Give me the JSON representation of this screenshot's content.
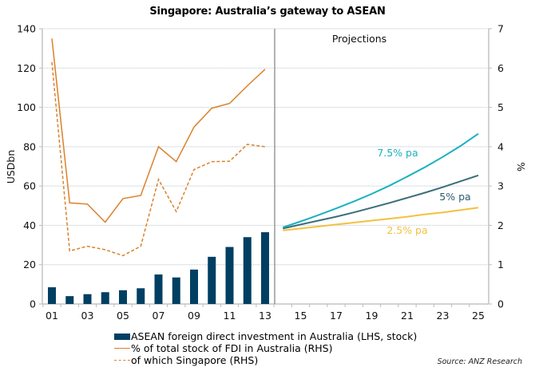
{
  "chart_data": {
    "type": "bar",
    "title": "Singapore: Australia’s gateway to ASEAN",
    "xlabel": "",
    "ylabel": "USDbn",
    "y2label": "%",
    "ylim": [
      0,
      140
    ],
    "y2lim": [
      0,
      7
    ],
    "yticks": [
      "0",
      "20",
      "40",
      "60",
      "80",
      "100",
      "120",
      "140"
    ],
    "y2ticks": [
      "0",
      "1",
      "2",
      "3",
      "4",
      "5",
      "6",
      "7"
    ],
    "xticks": [
      "01",
      "03",
      "05",
      "07",
      "09",
      "11",
      "13",
      "15",
      "17",
      "19",
      "21",
      "23",
      "25"
    ],
    "grid": true,
    "historical_years": [
      "01",
      "02",
      "03",
      "04",
      "05",
      "06",
      "07",
      "08",
      "09",
      "10",
      "11",
      "12",
      "13"
    ],
    "projection_years": [
      "14",
      "15",
      "16",
      "17",
      "18",
      "19",
      "20",
      "21",
      "22",
      "23",
      "24",
      "25"
    ],
    "projection_label": "Projections",
    "series": [
      {
        "name": "ASEAN foreign direct investment in Australia (LHS, stock)",
        "type": "bar",
        "axis": "left",
        "color": "#003f62",
        "values": [
          8.5,
          4,
          5,
          6,
          7,
          8,
          15,
          13.5,
          17.5,
          24,
          29,
          34,
          36.5
        ]
      },
      {
        "name": "% of total stock of FDI in Australia (RHS)",
        "type": "line",
        "axis": "right",
        "color": "#d9822b",
        "style": "solid",
        "values": [
          6.75,
          2.57,
          2.54,
          2.08,
          2.68,
          2.76,
          4.0,
          3.62,
          4.5,
          4.98,
          5.1,
          5.55,
          5.97
        ]
      },
      {
        "name": "of which Singapore (RHS)",
        "type": "line",
        "axis": "right",
        "color": "#d9822b",
        "style": "dashed",
        "values": [
          6.15,
          1.35,
          1.47,
          1.38,
          1.23,
          1.47,
          3.17,
          2.35,
          3.42,
          3.62,
          3.63,
          4.06,
          4.0
        ]
      },
      {
        "name": "7.5% pa",
        "type": "line",
        "axis": "right",
        "color": "#1ab0c0",
        "projection": true,
        "values": [
          1.95,
          2.1,
          2.26,
          2.43,
          2.61,
          2.8,
          3.01,
          3.24,
          3.48,
          3.74,
          4.02,
          4.33
        ]
      },
      {
        "name": "5% pa",
        "type": "line",
        "axis": "right",
        "color": "#3a6e78",
        "projection": true,
        "values": [
          1.92,
          2.02,
          2.12,
          2.22,
          2.33,
          2.45,
          2.57,
          2.7,
          2.83,
          2.97,
          3.12,
          3.27
        ]
      },
      {
        "name": "2.5% pa",
        "type": "line",
        "axis": "right",
        "color": "#f2c140",
        "projection": true,
        "values": [
          1.87,
          1.92,
          1.97,
          2.02,
          2.07,
          2.12,
          2.17,
          2.22,
          2.28,
          2.33,
          2.39,
          2.45
        ]
      }
    ],
    "legend": [
      {
        "label": "ASEAN foreign direct investment in Australia (LHS, stock)",
        "marker": "bar"
      },
      {
        "label": "% of total stock of FDI in Australia (RHS)",
        "marker": "line"
      },
      {
        "label": "of which Singapore (RHS)",
        "marker": "dashed"
      }
    ],
    "legend_position": "bottom",
    "source": "Source: ANZ Research"
  }
}
